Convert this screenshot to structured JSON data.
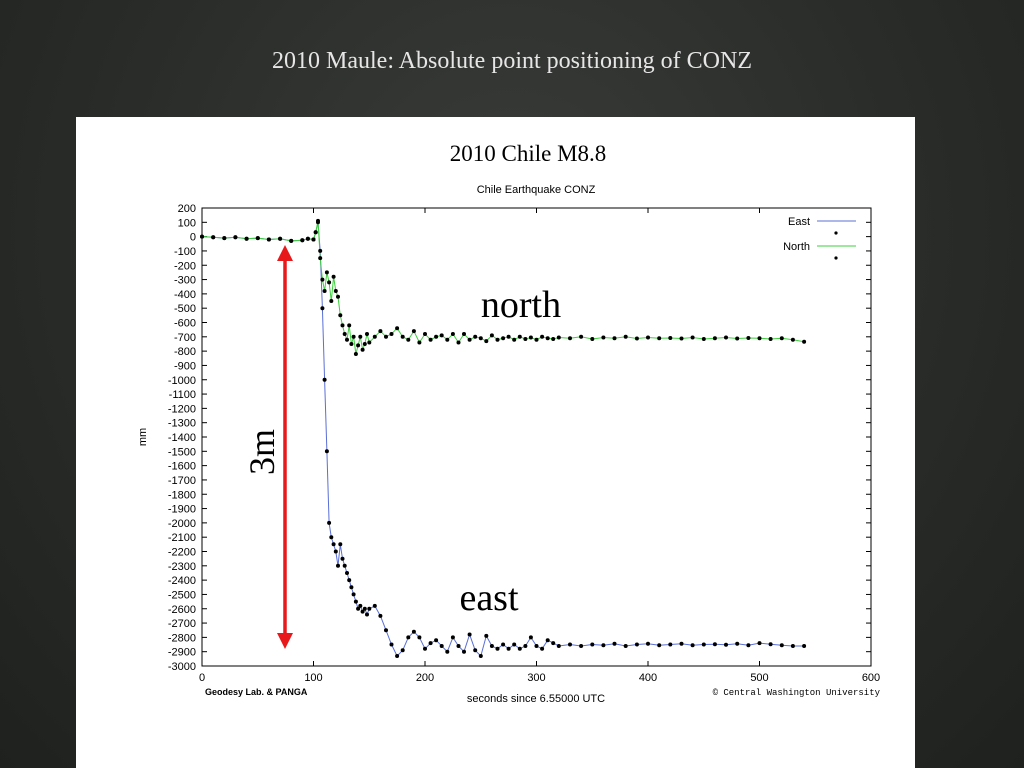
{
  "slide": {
    "title": "2010 Maule: Absolute point positioning of CONZ"
  },
  "figure": {
    "heading": "2010 Chile M8.8",
    "annotations": {
      "north": "north",
      "east": "east",
      "span": "3m"
    },
    "credit_left": "Geodesy Lab. & PANGA",
    "credit_right": "© Central Washington University",
    "colors": {
      "east_line": "#5a6fd6",
      "north_line": "#3ecf3e",
      "points": "#000000",
      "arrow": "#e8191b"
    }
  },
  "chart_data": {
    "type": "line",
    "title": "Chile Earthquake CONZ",
    "xlabel": "seconds since 6.55000 UTC",
    "ylabel": "mm",
    "xlim": [
      0,
      600
    ],
    "ylim": [
      -3000,
      200
    ],
    "xticks": [
      0,
      100,
      200,
      300,
      400,
      500,
      600
    ],
    "yticks": [
      200,
      100,
      0,
      -100,
      -200,
      -300,
      -400,
      -500,
      -600,
      -700,
      -800,
      -900,
      -1000,
      -1100,
      -1200,
      -1300,
      -1400,
      -1500,
      -1600,
      -1700,
      -1800,
      -1900,
      -2000,
      -2100,
      -2200,
      -2300,
      -2400,
      -2500,
      -2600,
      -2700,
      -2800,
      -2900,
      -3000
    ],
    "legend": "top-right",
    "series": [
      {
        "name": "East",
        "x": [
          0,
          10,
          20,
          30,
          40,
          50,
          60,
          70,
          80,
          90,
          95,
          100,
          102,
          104,
          106,
          108,
          110,
          112,
          114,
          116,
          118,
          120,
          122,
          124,
          126,
          128,
          130,
          132,
          134,
          136,
          138,
          140,
          142,
          144,
          146,
          148,
          150,
          155,
          160,
          165,
          170,
          175,
          180,
          185,
          190,
          195,
          200,
          205,
          210,
          215,
          220,
          225,
          230,
          235,
          240,
          245,
          250,
          255,
          260,
          265,
          270,
          275,
          280,
          285,
          290,
          295,
          300,
          305,
          310,
          315,
          320,
          330,
          340,
          350,
          360,
          370,
          380,
          390,
          400,
          410,
          420,
          430,
          440,
          450,
          460,
          470,
          480,
          490,
          500,
          510,
          520,
          530,
          540
        ],
        "y": [
          0,
          -5,
          -10,
          -5,
          -15,
          -10,
          -20,
          -15,
          -30,
          -25,
          -15,
          -20,
          30,
          100,
          -100,
          -500,
          -1000,
          -1500,
          -2000,
          -2100,
          -2150,
          -2200,
          -2300,
          -2150,
          -2250,
          -2300,
          -2350,
          -2400,
          -2450,
          -2500,
          -2550,
          -2600,
          -2580,
          -2620,
          -2600,
          -2640,
          -2600,
          -2580,
          -2650,
          -2750,
          -2850,
          -2930,
          -2890,
          -2800,
          -2760,
          -2800,
          -2880,
          -2840,
          -2820,
          -2860,
          -2900,
          -2800,
          -2860,
          -2900,
          -2780,
          -2890,
          -2930,
          -2790,
          -2860,
          -2880,
          -2850,
          -2880,
          -2850,
          -2880,
          -2860,
          -2800,
          -2860,
          -2880,
          -2820,
          -2840,
          -2860,
          -2850,
          -2860,
          -2850,
          -2855,
          -2845,
          -2860,
          -2850,
          -2845,
          -2855,
          -2850,
          -2845,
          -2855,
          -2850,
          -2848,
          -2852,
          -2845,
          -2855,
          -2840,
          -2848,
          -2855,
          -2860,
          -2860
        ]
      },
      {
        "name": "North",
        "x": [
          0,
          10,
          20,
          30,
          40,
          50,
          60,
          70,
          80,
          90,
          95,
          100,
          102,
          104,
          106,
          108,
          110,
          112,
          114,
          116,
          118,
          120,
          122,
          124,
          126,
          128,
          130,
          132,
          134,
          136,
          138,
          140,
          142,
          144,
          146,
          148,
          150,
          155,
          160,
          165,
          170,
          175,
          180,
          185,
          190,
          195,
          200,
          205,
          210,
          215,
          220,
          225,
          230,
          235,
          240,
          245,
          250,
          255,
          260,
          265,
          270,
          275,
          280,
          285,
          290,
          295,
          300,
          305,
          310,
          315,
          320,
          330,
          340,
          350,
          360,
          370,
          380,
          390,
          400,
          410,
          420,
          430,
          440,
          450,
          460,
          470,
          480,
          490,
          500,
          510,
          520,
          530,
          540
        ],
        "y": [
          0,
          -5,
          -10,
          -5,
          -15,
          -10,
          -20,
          -15,
          -30,
          -25,
          -15,
          -20,
          30,
          110,
          -150,
          -300,
          -380,
          -250,
          -320,
          -450,
          -280,
          -380,
          -420,
          -550,
          -620,
          -680,
          -720,
          -620,
          -750,
          -700,
          -820,
          -760,
          -700,
          -790,
          -750,
          -680,
          -740,
          -700,
          -660,
          -700,
          -680,
          -640,
          -700,
          -720,
          -660,
          -740,
          -680,
          -720,
          -700,
          -690,
          -720,
          -680,
          -740,
          -680,
          -720,
          -700,
          -710,
          -730,
          -690,
          -720,
          -710,
          -700,
          -720,
          -700,
          -715,
          -705,
          -720,
          -700,
          -710,
          -715,
          -705,
          -710,
          -700,
          -715,
          -705,
          -710,
          -700,
          -712,
          -705,
          -710,
          -708,
          -712,
          -705,
          -715,
          -710,
          -705,
          -712,
          -708,
          -710,
          -715,
          -710,
          -720,
          -735
        ]
      }
    ]
  }
}
